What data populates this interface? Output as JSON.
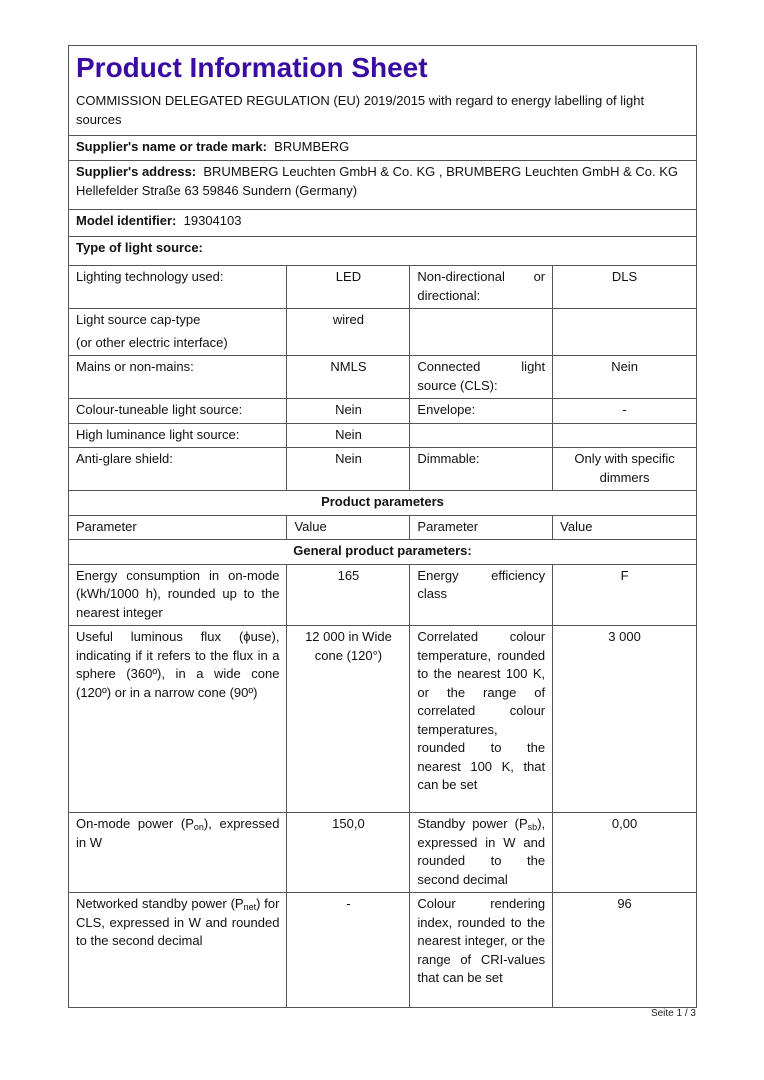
{
  "title": "Product Information Sheet",
  "regulation": "COMMISSION DELEGATED REGULATION (EU) 2019/2015 with regard to energy labelling of light sources",
  "supplier_name": {
    "label": "Supplier's name or trade mark:",
    "value": "BRUMBERG"
  },
  "supplier_address": {
    "label": "Supplier's address:",
    "value": "BRUMBERG Leuchten GmbH & Co. KG , BRUMBERG Leuchten GmbH & Co. KG Hellefelder Straße 63 59846 Sundern (Germany)"
  },
  "model": {
    "label": "Model identifier:",
    "value": "19304103"
  },
  "type_heading": "Type of light source:",
  "type_rows": [
    {
      "p1": "Lighting technology used:",
      "v1": "LED",
      "p2": "Non-directional or directional:",
      "v2": "DLS"
    },
    {
      "p1a": "Light source cap-type",
      "p1b": "(or other electric interface)",
      "v1": "wired",
      "p2": "",
      "v2": ""
    },
    {
      "p1": "Mains or non-mains:",
      "v1": "NMLS",
      "p2": "Connected light source (CLS):",
      "v2": "Nein"
    },
    {
      "p1": "Colour-tuneable light source:",
      "v1": "Nein",
      "p2": "Envelope:",
      "v2": "-"
    },
    {
      "p1": "High luminance light source:",
      "v1": "Nein",
      "p2": "",
      "v2": ""
    },
    {
      "p1": "Anti-glare shield:",
      "v1": "Nein",
      "p2": "Dimmable:",
      "v2": "Only with specific dimmers"
    }
  ],
  "product_parameters_heading": "Product parameters",
  "param_headers": [
    "Parameter",
    "Value",
    "Parameter",
    "Value"
  ],
  "general_heading": "General product parameters:",
  "params": {
    "energy": {
      "p1": "Energy consumption in on-mode (kWh/1000 h), rounded up to the nearest integer",
      "v1": "165",
      "p2": "Energy efficiency class",
      "v2": "F"
    },
    "flux": {
      "p1": "Useful luminous flux (ϕuse), indicating if it refers to the flux in a sphere (360º), in a wide cone (120º) or in a narrow cone (90º)",
      "v1": "12 000 in Wide cone (120°)",
      "p2": "Correlated colour temperature, rounded to the nearest 100 K, or the range of correlated colour temperatures, rounded to the nearest 100 K, that can be set",
      "v2": "3 000"
    },
    "power": {
      "p1_pre": "On-mode power (P",
      "p1_sub": "on",
      "p1_post": "), expressed in W",
      "v1": "150,0",
      "p2_pre": "Standby power (P",
      "p2_sub": "sb",
      "p2_post": "), expressed in W and rounded to the second decimal",
      "v2": "0,00"
    },
    "networked": {
      "p1_pre": "Networked standby power (P",
      "p1_sub": "net",
      "p1_post": ") for CLS, expressed in W and rounded to the second decimal",
      "v1": "-",
      "p2": "Colour rendering index, rounded to the nearest integer, or the range of CRI-values that can be set",
      "v2": "96"
    }
  },
  "footer": {
    "prefix": "Seite",
    "page": "1 / 3"
  },
  "colors": {
    "title": "#3a0ca3",
    "border": "#555555"
  }
}
